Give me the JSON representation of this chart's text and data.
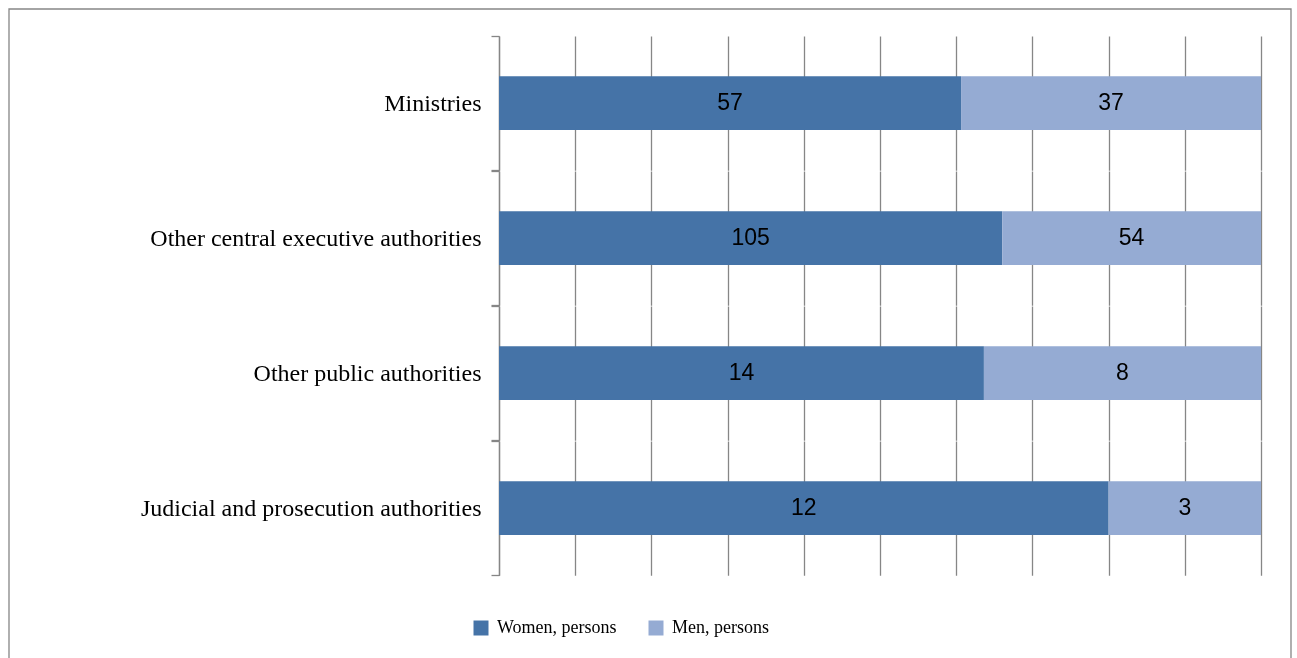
{
  "chart_data": [
    {
      "type": "bar",
      "orientation": "horizontal",
      "stacked": true,
      "categories": [
        "Ministries"
      ],
      "series": [
        {
          "name": "Women, persons",
          "color": "#4573a7",
          "values": [
            57
          ]
        },
        {
          "name": "Men, persons",
          "color": "#95abd3",
          "values": [
            37
          ]
        }
      ],
      "xlim": [
        0,
        94
      ],
      "xticks": [
        {
          "value": 0,
          "label": null
        },
        {
          "value": 9.4,
          "label": null
        },
        {
          "value": 18.8,
          "label": null
        },
        {
          "value": 28.2,
          "label": null
        },
        {
          "value": 37.6,
          "label": null
        },
        {
          "value": 47,
          "label": null
        },
        {
          "value": 56.4,
          "label": null
        },
        {
          "value": 65.8,
          "label": null
        },
        {
          "value": 75.2,
          "label": null
        },
        {
          "value": 84.6,
          "label": null
        },
        {
          "value": 94,
          "label": null
        }
      ],
      "grid": "x",
      "data_labels": true,
      "tick_labels": "y",
      "legend": "bottom"
    },
    {
      "type": "bar",
      "orientation": "horizontal",
      "stacked": true,
      "categories": [
        "Other central executive authorities"
      ],
      "series": [
        {
          "name": "Women, persons",
          "color": "#4573a7",
          "values": [
            105
          ]
        },
        {
          "name": "Men, persons",
          "color": "#95abd3",
          "values": [
            54
          ]
        }
      ],
      "xlim": [
        0,
        159
      ],
      "xticks": [
        {
          "value": 0,
          "label": null
        },
        {
          "value": 15.9,
          "label": null
        },
        {
          "value": 31.8,
          "label": null
        },
        {
          "value": 47.7,
          "label": null
        },
        {
          "value": 63.6,
          "label": null
        },
        {
          "value": 79.5,
          "label": null
        },
        {
          "value": 95.4,
          "label": null
        },
        {
          "value": 111.3,
          "label": null
        },
        {
          "value": 127.2,
          "label": null
        },
        {
          "value": 143.1,
          "label": null
        },
        {
          "value": 159,
          "label": null
        }
      ],
      "grid": "x",
      "data_labels": true,
      "tick_labels": "y",
      "legend": "bottom"
    },
    {
      "type": "bar",
      "orientation": "horizontal",
      "stacked": true,
      "categories": [
        "Other public authorities"
      ],
      "series": [
        {
          "name": "Women, persons",
          "color": "#4573a7",
          "values": [
            14
          ]
        },
        {
          "name": "Men, persons",
          "color": "#95abd3",
          "values": [
            8
          ]
        }
      ],
      "xlim": [
        0,
        22
      ],
      "xticks": [
        {
          "value": 0,
          "label": null
        },
        {
          "value": 2.2,
          "label": null
        },
        {
          "value": 4.4,
          "label": null
        },
        {
          "value": 6.6,
          "label": null
        },
        {
          "value": 8.8,
          "label": null
        },
        {
          "value": 11,
          "label": null
        },
        {
          "value": 13.2,
          "label": null
        },
        {
          "value": 15.4,
          "label": null
        },
        {
          "value": 17.6,
          "label": null
        },
        {
          "value": 19.8,
          "label": null
        },
        {
          "value": 22,
          "label": null
        }
      ],
      "grid": "x",
      "data_labels": true,
      "tick_labels": "y",
      "legend": "bottom"
    },
    {
      "type": "bar",
      "orientation": "horizontal",
      "stacked": true,
      "categories": [
        "Judicial and prosecution authorities"
      ],
      "series": [
        {
          "name": "Women, persons",
          "color": "#4573a7",
          "values": [
            12
          ]
        },
        {
          "name": "Men, persons",
          "color": "#95abd3",
          "values": [
            3
          ]
        }
      ],
      "xlim": [
        0,
        15
      ],
      "xticks": [
        {
          "value": 0,
          "label": null
        },
        {
          "value": 1.5,
          "label": null
        },
        {
          "value": 3,
          "label": null
        },
        {
          "value": 4.5,
          "label": null
        },
        {
          "value": 6,
          "label": null
        },
        {
          "value": 7.5,
          "label": null
        },
        {
          "value": 9,
          "label": null
        },
        {
          "value": 10.5,
          "label": null
        },
        {
          "value": 12,
          "label": null
        },
        {
          "value": 13.5,
          "label": null
        },
        {
          "value": 15,
          "label": null
        }
      ],
      "grid": "x",
      "data_labels": true,
      "tick_labels": "y",
      "legend": "bottom"
    }
  ]
}
